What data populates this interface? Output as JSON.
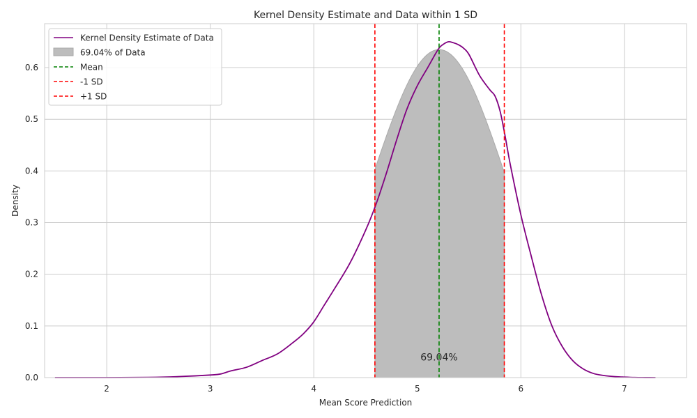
{
  "chart_data": {
    "type": "line",
    "title": "Kernel Density Estimate and Data within 1 SD",
    "xlabel": "Mean Score Prediction",
    "ylabel": "Density",
    "xlim": [
      1.4,
      7.6
    ],
    "ylim": [
      0,
      0.685
    ],
    "x_ticks": [
      2,
      3,
      4,
      5,
      6,
      7
    ],
    "y_ticks": [
      0.0,
      0.1,
      0.2,
      0.3,
      0.4,
      0.5,
      0.6
    ],
    "x_tick_labels": [
      "2",
      "3",
      "4",
      "5",
      "6",
      "7"
    ],
    "y_tick_labels": [
      "0.0",
      "0.1",
      "0.2",
      "0.3",
      "0.4",
      "0.5",
      "0.6"
    ],
    "grid": true,
    "legend_position": "top-left",
    "colors": {
      "kde": "#800080",
      "shade": "#bdbdbd",
      "shade_edge": "#a9a9a9",
      "mean": "#008000",
      "sd": "#ff0000",
      "grid": "#cccccc",
      "spine": "#cccccc"
    },
    "kde": {
      "name": "Kernel Density Estimate of Data",
      "x": [
        1.5,
        2.0,
        2.4,
        2.7,
        3.0,
        3.1,
        3.2,
        3.35,
        3.5,
        3.65,
        3.8,
        3.9,
        4.0,
        4.1,
        4.2,
        4.35,
        4.5,
        4.6,
        4.7,
        4.8,
        4.9,
        5.0,
        5.1,
        5.2,
        5.25,
        5.3,
        5.35,
        5.4,
        5.45,
        5.5,
        5.6,
        5.7,
        5.75,
        5.8,
        5.85,
        5.9,
        6.0,
        6.1,
        6.2,
        6.3,
        6.4,
        6.5,
        6.6,
        6.7,
        6.8,
        6.9,
        7.0,
        7.1,
        7.2,
        7.3
      ],
      "y": [
        0.0,
        0.0,
        0.0005,
        0.002,
        0.005,
        0.007,
        0.013,
        0.02,
        0.033,
        0.046,
        0.068,
        0.085,
        0.108,
        0.14,
        0.172,
        0.222,
        0.285,
        0.335,
        0.395,
        0.46,
        0.52,
        0.565,
        0.6,
        0.635,
        0.645,
        0.65,
        0.648,
        0.644,
        0.637,
        0.625,
        0.585,
        0.557,
        0.545,
        0.515,
        0.465,
        0.41,
        0.315,
        0.235,
        0.16,
        0.1,
        0.06,
        0.033,
        0.017,
        0.008,
        0.004,
        0.002,
        0.001,
        0.0003,
        0.0001,
        0.0
      ]
    },
    "shaded_region": {
      "name": "69.04% of Data",
      "x_start": 4.59,
      "x_end": 5.84,
      "peak_x": 5.21,
      "peak_y": 0.635,
      "edge_y": 0.4,
      "percent_label": "69.04%"
    },
    "mean": {
      "name": "Mean",
      "x": 5.21
    },
    "minus_sd": {
      "name": "-1 SD",
      "x": 4.59
    },
    "plus_sd": {
      "name": "+1 SD",
      "x": 5.84
    },
    "annotation": {
      "text": "69.04%",
      "x": 5.21,
      "y": 0.04
    }
  }
}
